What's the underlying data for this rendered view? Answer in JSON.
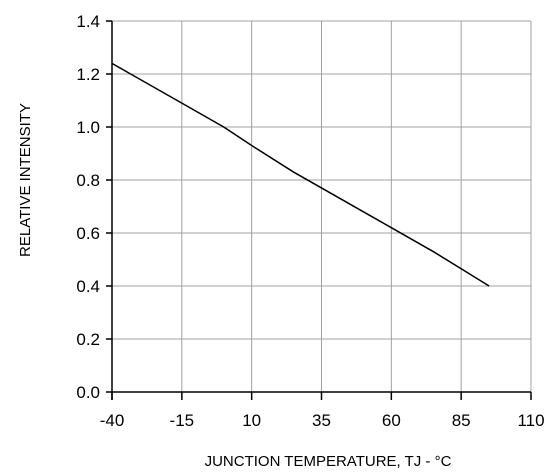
{
  "chart_data": {
    "type": "line",
    "title": "",
    "xlabel": "JUNCTION TEMPERATURE, TJ - °C",
    "ylabel": "RELATIVE INTENSITY",
    "xlim": [
      -40,
      110
    ],
    "ylim": [
      0.0,
      1.4
    ],
    "x_ticks": [
      -40,
      -15,
      10,
      35,
      60,
      85,
      110
    ],
    "x_tick_labels": [
      "-40",
      "-15",
      "10",
      "35",
      "60",
      "85",
      "110"
    ],
    "y_ticks": [
      0.0,
      0.2,
      0.4,
      0.6,
      0.8,
      1.0,
      1.2,
      1.4
    ],
    "y_tick_labels": [
      "0.0",
      "0.2",
      "0.4",
      "0.6",
      "0.8",
      "1.0",
      "1.2",
      "1.4"
    ],
    "grid": true,
    "legend": "none",
    "series": [
      {
        "x": [
          -40,
          -15,
          0,
          10,
          25,
          35,
          50,
          60,
          75,
          85,
          95
        ],
        "y": [
          1.24,
          1.09,
          1.0,
          0.93,
          0.83,
          0.77,
          0.68,
          0.62,
          0.53,
          0.465,
          0.4
        ],
        "color": "#000000"
      }
    ]
  }
}
